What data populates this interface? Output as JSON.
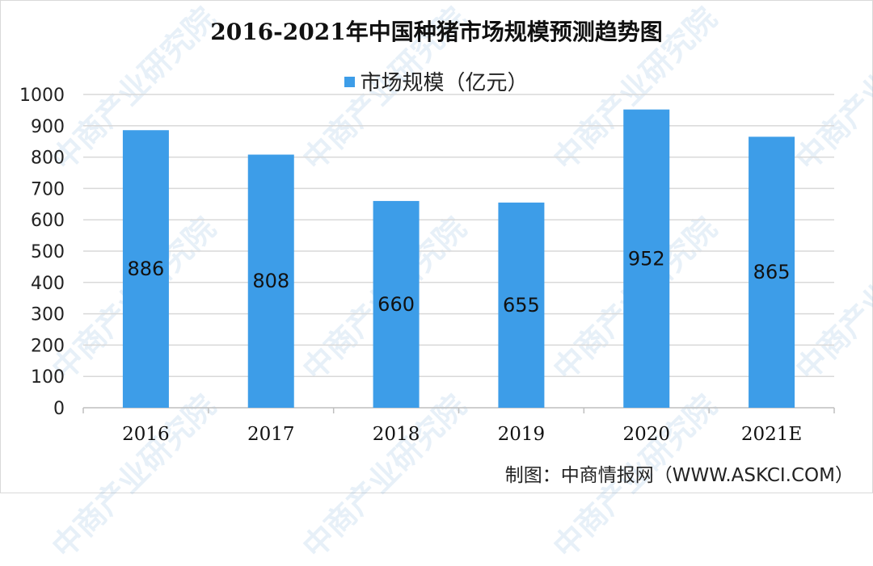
{
  "watermark": "中商产业研究院",
  "source": "制图：中商情报网（WWW.ASKCI.COM）",
  "colors": {
    "bar": "#3d9de8",
    "grid": "#d9d9d9",
    "axis": "#bfbfbf"
  },
  "chart_data": {
    "type": "bar",
    "title": "2016-2021年中国种猪市场规模预测趋势图",
    "legend_position": "top",
    "categories": [
      "2016",
      "2017",
      "2018",
      "2019",
      "2020",
      "2021E"
    ],
    "series": [
      {
        "name": "市场规模（亿元）",
        "values": [
          886,
          808,
          660,
          655,
          952,
          865
        ]
      }
    ],
    "ylim": [
      0,
      1000
    ],
    "yticks": [
      0,
      100,
      200,
      300,
      400,
      500,
      600,
      700,
      800,
      900,
      1000
    ],
    "grid": true,
    "data_labels": [
      "886",
      "808",
      "660",
      "655",
      "952",
      "865"
    ]
  }
}
